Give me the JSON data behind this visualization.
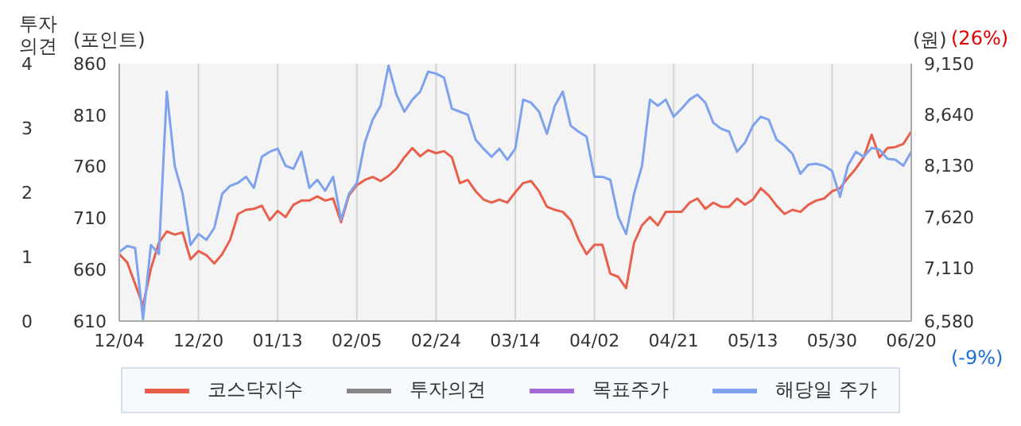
{
  "chart_data": {
    "type": "line",
    "ylabel": "(포인트)",
    "y2label": "(원)",
    "y3label": "투자\n의견",
    "annotations": [
      "(26%)",
      "(-9%)"
    ],
    "categories": [
      "12/04",
      null,
      null,
      null,
      null,
      null,
      null,
      null,
      null,
      null,
      "12/20",
      null,
      null,
      null,
      null,
      null,
      null,
      null,
      null,
      null,
      "01/13",
      null,
      null,
      null,
      null,
      null,
      null,
      null,
      null,
      null,
      "02/05",
      null,
      null,
      null,
      null,
      null,
      null,
      null,
      null,
      null,
      "02/24",
      null,
      null,
      null,
      null,
      null,
      null,
      null,
      null,
      null,
      "03/14",
      null,
      null,
      null,
      null,
      null,
      null,
      null,
      null,
      null,
      "04/02",
      null,
      null,
      null,
      null,
      null,
      null,
      null,
      null,
      null,
      "04/21",
      null,
      null,
      null,
      null,
      null,
      null,
      null,
      null,
      null,
      "05/13",
      null,
      null,
      null,
      null,
      null,
      null,
      null,
      null,
      null,
      "05/30",
      null,
      null,
      null,
      null,
      null,
      null,
      null,
      null,
      null,
      "06/20"
    ],
    "series": [
      {
        "name": "코스닥지수",
        "color": "#e8604c",
        "values": [
          675,
          667,
          646,
          625,
          661,
          686,
          697,
          694,
          696,
          670,
          678,
          674,
          666,
          675,
          689,
          714,
          718,
          719,
          722,
          708,
          717,
          711,
          723,
          727,
          727,
          731,
          727,
          729,
          706,
          732,
          742,
          747,
          750,
          746,
          751,
          758,
          769,
          778,
          770,
          776,
          773,
          775,
          769,
          744,
          747,
          736,
          728,
          725,
          728,
          725,
          735,
          744,
          746,
          736,
          721,
          718,
          716,
          708,
          689,
          675,
          684,
          684,
          656,
          653,
          642,
          686,
          703,
          711,
          703,
          716,
          716,
          716,
          725,
          729,
          719,
          725,
          721,
          721,
          729,
          723,
          728,
          739,
          732,
          722,
          714,
          718,
          716,
          723,
          727,
          729,
          736,
          739,
          749,
          758,
          769,
          791,
          769,
          778,
          779,
          782,
          794
        ]
      },
      {
        "name": "투자의견",
        "color": "#888888",
        "axis": "y3",
        "values": [
          null,
          null,
          null,
          null,
          null,
          null,
          null,
          null,
          null,
          null,
          null,
          null,
          null,
          null,
          null,
          null,
          null,
          null,
          null,
          null,
          null,
          null,
          null,
          null,
          null,
          null,
          null,
          null,
          null,
          null,
          null,
          null,
          null,
          null,
          null,
          null,
          null,
          null,
          null,
          null,
          null,
          null,
          null,
          null,
          null,
          null,
          null,
          null,
          null,
          null,
          null,
          null,
          null,
          null,
          null,
          null,
          null,
          null,
          null,
          null,
          null,
          null,
          null,
          null,
          null,
          null,
          null,
          null,
          null,
          null,
          null,
          null,
          null,
          null,
          null,
          null,
          null,
          null,
          null,
          null,
          null,
          null,
          null,
          null,
          null,
          null,
          null,
          null,
          null,
          null,
          null,
          null,
          null,
          null,
          null,
          null,
          null,
          null,
          null,
          null,
          null
        ]
      },
      {
        "name": "목표주가",
        "color": "#a86ad6",
        "axis": "y2",
        "values": [
          null,
          null,
          null,
          null,
          null,
          null,
          null,
          null,
          null,
          null,
          null,
          null,
          null,
          null,
          null,
          null,
          null,
          null,
          null,
          null,
          null,
          null,
          null,
          null,
          null,
          null,
          null,
          null,
          null,
          null,
          null,
          null,
          null,
          null,
          null,
          null,
          null,
          null,
          null,
          null,
          null,
          null,
          null,
          null,
          null,
          null,
          null,
          null,
          null,
          null,
          null,
          null,
          null,
          null,
          null,
          null,
          null,
          null,
          null,
          null,
          null,
          null,
          null,
          null,
          null,
          null,
          null,
          null,
          null,
          null,
          null,
          null,
          null,
          null,
          null,
          null,
          null,
          null,
          null,
          null,
          null,
          null,
          null,
          null,
          null,
          null,
          null,
          null,
          null,
          null,
          null,
          null,
          null,
          null,
          null,
          null,
          null,
          null,
          null,
          null,
          null
        ]
      },
      {
        "name": "해당일 주가",
        "color": "#7ea2ee",
        "axis": "y2",
        "values": [
          7270,
          7330,
          7310,
          6600,
          7340,
          7250,
          8870,
          8130,
          7850,
          7340,
          7450,
          7390,
          7510,
          7850,
          7930,
          7960,
          8020,
          7910,
          8220,
          8270,
          8300,
          8130,
          8100,
          8270,
          7910,
          7990,
          7880,
          8020,
          7590,
          7850,
          7960,
          8360,
          8590,
          8730,
          9130,
          8840,
          8670,
          8790,
          8870,
          9070,
          9050,
          9010,
          8700,
          8670,
          8640,
          8390,
          8300,
          8220,
          8300,
          8190,
          8300,
          8790,
          8760,
          8670,
          8450,
          8730,
          8870,
          8530,
          8470,
          8420,
          8020,
          8020,
          7990,
          7620,
          7450,
          7850,
          8130,
          8790,
          8730,
          8790,
          8620,
          8700,
          8790,
          8840,
          8760,
          8560,
          8500,
          8470,
          8270,
          8360,
          8530,
          8620,
          8590,
          8390,
          8330,
          8250,
          8050,
          8140,
          8150,
          8130,
          8080,
          7820,
          8130,
          8270,
          8220,
          8310,
          8290,
          8200,
          8190,
          8130,
          8270
        ]
      }
    ],
    "ylim": [
      610,
      860
    ],
    "yticks": [
      610,
      660,
      710,
      760,
      810,
      860
    ],
    "y2lim": [
      6580,
      9150
    ],
    "y2ticks": [
      {
        "value": 6580,
        "label": "6,580"
      },
      {
        "value": 7110,
        "label": "7,110"
      },
      {
        "value": 7620,
        "label": "7,620"
      },
      {
        "value": 8130,
        "label": "8,130"
      },
      {
        "value": 8640,
        "label": "8,640"
      },
      {
        "value": 9150,
        "label": "9,150"
      }
    ],
    "y3lim": [
      0,
      4
    ],
    "y3ticks": [
      0,
      1,
      2,
      3,
      4
    ],
    "grid": "x",
    "legend": "bottom",
    "marker": "none",
    "line_style": "solid"
  }
}
